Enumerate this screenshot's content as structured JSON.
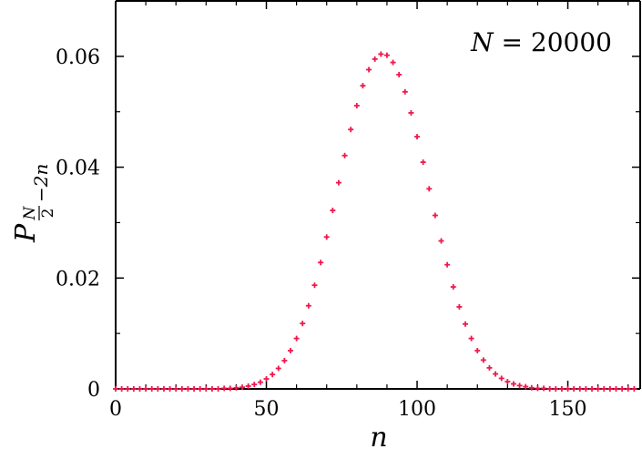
{
  "chart_data": {
    "type": "scatter",
    "title": "",
    "xlabel": "n",
    "ylabel_main": "P",
    "ylabel_subscript": "N/2 − 2n",
    "ylabel_sub_num": "N",
    "ylabel_sub_den": "2",
    "ylabel_sub_tail": "−2n",
    "xlim": [
      0,
      174
    ],
    "ylim": [
      0,
      0.07
    ],
    "x_ticks": [
      0,
      50,
      100,
      150
    ],
    "x_tick_labels": [
      "0",
      "50",
      "100",
      "150"
    ],
    "y_ticks": [
      0,
      0.02,
      0.04,
      0.06
    ],
    "y_tick_labels": [
      "0",
      "0.02",
      "0.04",
      "0.06"
    ],
    "annotation": {
      "lhs": "N",
      "op": " = ",
      "rhs": "20000"
    },
    "grid": false,
    "legend": "none",
    "marker_color": "#f0184e",
    "series": [
      {
        "x": [
          0,
          2,
          4,
          6,
          8,
          10,
          12,
          14,
          16,
          18,
          20,
          22,
          24,
          26,
          28,
          30,
          32,
          34,
          36,
          38,
          40,
          42,
          44,
          46,
          48,
          50,
          52,
          54,
          56,
          58,
          60,
          62,
          64,
          66,
          68,
          70,
          72,
          74,
          76,
          78,
          80,
          82,
          84,
          86,
          88,
          90,
          92,
          94,
          96,
          98,
          100,
          102,
          104,
          106,
          108,
          110,
          112,
          114,
          116,
          118,
          120,
          122,
          124,
          126,
          128,
          130,
          132,
          134,
          136,
          138,
          140,
          142,
          144,
          146,
          148,
          150,
          152,
          154,
          156,
          158,
          160,
          162,
          164,
          166,
          168,
          170,
          172
        ],
        "y": [
          0,
          0,
          0,
          0,
          0,
          0,
          0,
          0,
          0,
          0,
          0,
          0,
          0,
          0,
          0,
          0,
          0,
          0,
          0.0001,
          0.0001,
          0.0002,
          0.0003,
          0.0005,
          0.0008,
          0.0012,
          0.0018,
          0.0026,
          0.0037,
          0.0051,
          0.0069,
          0.0091,
          0.0118,
          0.015,
          0.0187,
          0.0228,
          0.0274,
          0.0322,
          0.0372,
          0.0421,
          0.0468,
          0.0511,
          0.0547,
          0.0576,
          0.0595,
          0.0604,
          0.0602,
          0.0589,
          0.0567,
          0.0536,
          0.0498,
          0.0455,
          0.0409,
          0.0361,
          0.0313,
          0.0267,
          0.0224,
          0.0184,
          0.0148,
          0.0117,
          0.0091,
          0.0069,
          0.0052,
          0.0038,
          0.0027,
          0.0019,
          0.0013,
          0.0009,
          0.0006,
          0.0004,
          0.0002,
          0.0001,
          0.0001,
          0,
          0,
          0,
          0,
          0,
          0,
          0,
          0,
          0,
          0,
          0,
          0,
          0,
          0,
          0
        ]
      }
    ]
  }
}
